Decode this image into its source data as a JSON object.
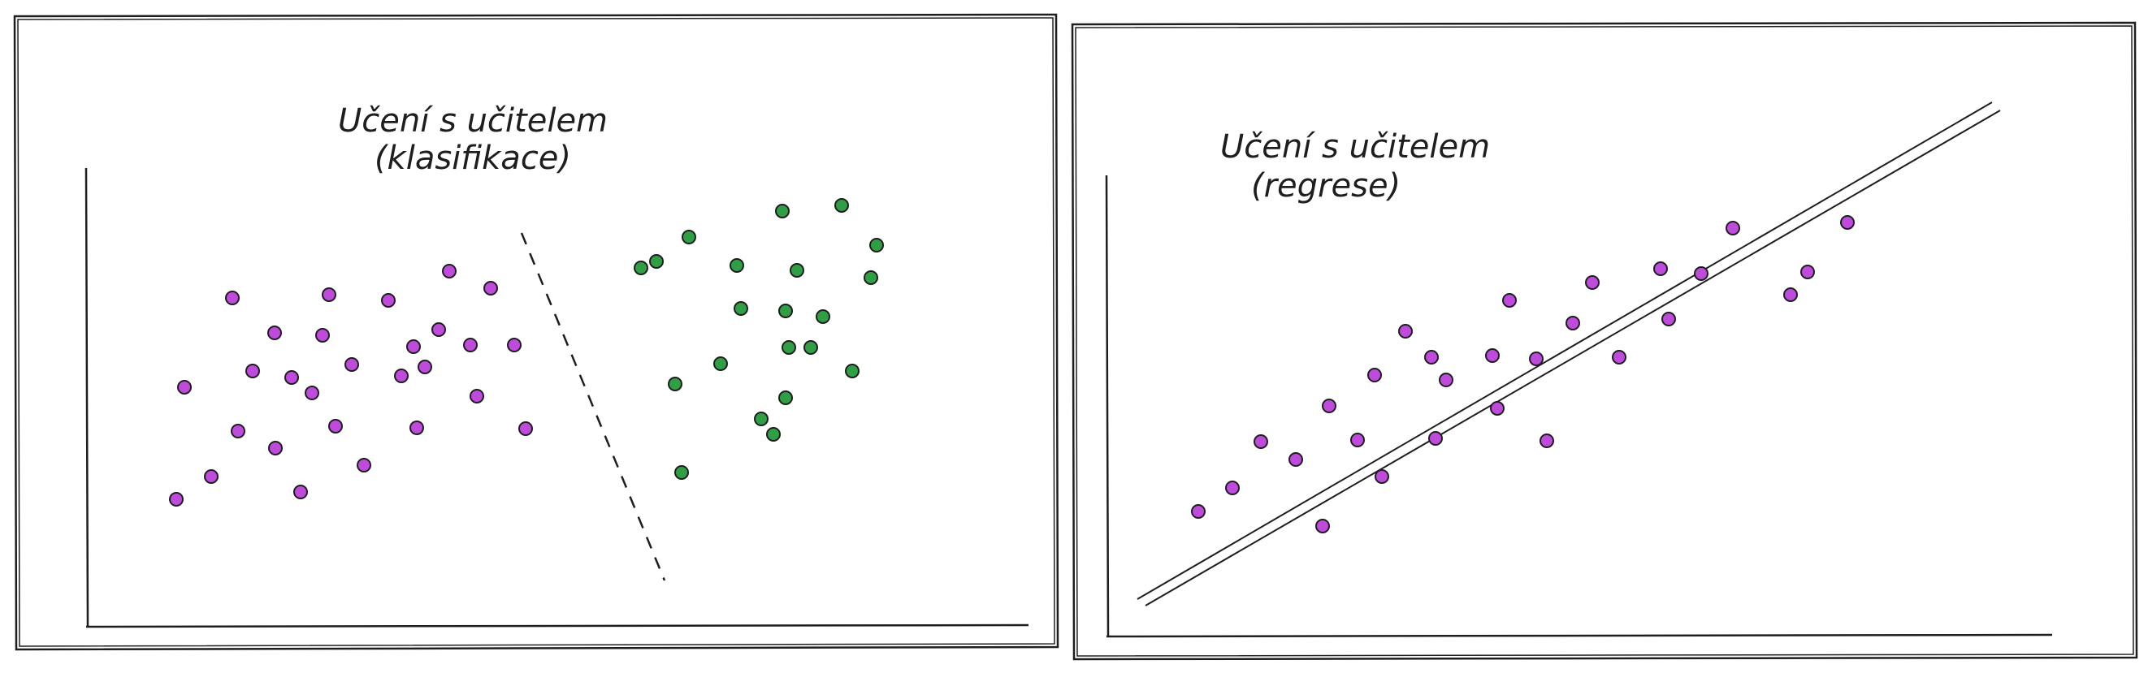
{
  "colors": {
    "stroke": "#1e1e1e",
    "class_a": "#be4bdb",
    "class_b": "#2f9e44",
    "background": "#ffffff"
  },
  "panels": [
    {
      "name": "classification",
      "title_line1": "Učení s učitelem",
      "title_line2": "(klasifikace)"
    },
    {
      "name": "regression",
      "title_line1": "Učení s učitelem",
      "title_line2": "(regrese)"
    }
  ]
}
